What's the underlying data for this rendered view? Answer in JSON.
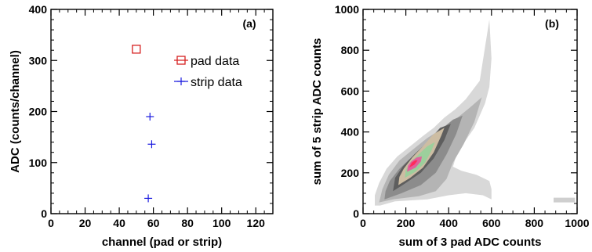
{
  "chart_data": [
    {
      "type": "scatter",
      "panel_label": "(a)",
      "xlabel": "channel (pad or strip)",
      "ylabel": "ADC (counts/channel)",
      "xlim": [
        0,
        130
      ],
      "ylim": [
        0,
        400
      ],
      "xticks": [
        "0",
        "20",
        "40",
        "60",
        "80",
        "100",
        "120"
      ],
      "yticks": [
        "0",
        "100",
        "200",
        "300",
        "400"
      ],
      "grid": false,
      "legend_position": "top-right",
      "series": [
        {
          "name": "pad data",
          "marker": "open-square",
          "color": "#d62020",
          "points": [
            {
              "x": 50,
              "y": 322
            }
          ]
        },
        {
          "name": "strip data",
          "marker": "plus",
          "color": "#1a1adf",
          "points": [
            {
              "x": 58,
              "y": 190
            },
            {
              "x": 59,
              "y": 136
            },
            {
              "x": 57,
              "y": 30
            }
          ]
        }
      ]
    },
    {
      "type": "heatmap",
      "panel_label": "(b)",
      "xlabel": "sum of 3 pad ADC counts",
      "ylabel": "sum of 5 strip ADC counts",
      "xlim": [
        0,
        1000
      ],
      "ylim": [
        0,
        1000
      ],
      "xticks": [
        "0",
        "200",
        "400",
        "600",
        "800",
        "1000"
      ],
      "yticks": [
        "0",
        "200",
        "400",
        "600",
        "800",
        "1000"
      ],
      "grid": false,
      "contour_levels": [
        {
          "color": "#d8d8d8",
          "polygon": [
            [
              55,
              40
            ],
            [
              80,
              40
            ],
            [
              150,
              60
            ],
            [
              300,
              70
            ],
            [
              400,
              90
            ],
            [
              480,
              100
            ],
            [
              560,
              90
            ],
            [
              600,
              70
            ],
            [
              600,
              120
            ],
            [
              590,
              160
            ],
            [
              530,
              190
            ],
            [
              460,
              210
            ],
            [
              420,
              230
            ],
            [
              440,
              300
            ],
            [
              520,
              420
            ],
            [
              570,
              540
            ],
            [
              590,
              620
            ],
            [
              600,
              760
            ],
            [
              590,
              950
            ],
            [
              545,
              650
            ],
            [
              480,
              560
            ],
            [
              430,
              510
            ],
            [
              380,
              470
            ],
            [
              330,
              420
            ],
            [
              280,
              380
            ],
            [
              220,
              330
            ],
            [
              160,
              280
            ],
            [
              110,
              220
            ],
            [
              75,
              150
            ],
            [
              55,
              90
            ]
          ]
        },
        {
          "color": "#b4b4b4",
          "polygon": [
            [
              75,
              55
            ],
            [
              140,
              70
            ],
            [
              260,
              85
            ],
            [
              340,
              110
            ],
            [
              390,
              170
            ],
            [
              420,
              250
            ],
            [
              470,
              340
            ],
            [
              520,
              450
            ],
            [
              555,
              570
            ],
            [
              500,
              520
            ],
            [
              430,
              460
            ],
            [
              360,
              410
            ],
            [
              300,
              370
            ],
            [
              240,
              320
            ],
            [
              170,
              260
            ],
            [
              120,
              190
            ],
            [
              90,
              120
            ]
          ]
        },
        {
          "color": "#8c8c8c",
          "polygon": [
            [
              100,
              70
            ],
            [
              180,
              100
            ],
            [
              270,
              140
            ],
            [
              340,
              200
            ],
            [
              390,
              290
            ],
            [
              435,
              390
            ],
            [
              465,
              480
            ],
            [
              420,
              460
            ],
            [
              350,
              400
            ],
            [
              290,
              340
            ],
            [
              230,
              280
            ],
            [
              170,
              220
            ],
            [
              125,
              160
            ],
            [
              105,
              110
            ]
          ]
        },
        {
          "color": "#5e5e5e",
          "polygon": [
            [
              140,
              110
            ],
            [
              200,
              150
            ],
            [
              270,
              200
            ],
            [
              330,
              270
            ],
            [
              380,
              360
            ],
            [
              410,
              440
            ],
            [
              360,
              420
            ],
            [
              300,
              350
            ],
            [
              240,
              290
            ],
            [
              185,
              230
            ],
            [
              150,
              175
            ]
          ]
        },
        {
          "color": "#cdbda3",
          "polygon": [
            [
              165,
              140
            ],
            [
              220,
              175
            ],
            [
              280,
              225
            ],
            [
              330,
              300
            ],
            [
              365,
              380
            ],
            [
              380,
              420
            ],
            [
              330,
              390
            ],
            [
              280,
              330
            ],
            [
              230,
              275
            ],
            [
              190,
              220
            ],
            [
              170,
              180
            ]
          ]
        },
        {
          "color": "#9ccf9c",
          "polygon": [
            [
              195,
              175
            ],
            [
              245,
              205
            ],
            [
              290,
              250
            ],
            [
              320,
              310
            ],
            [
              335,
              350
            ],
            [
              300,
              330
            ],
            [
              260,
              290
            ],
            [
              220,
              250
            ],
            [
              200,
              215
            ]
          ]
        },
        {
          "color": "#e0609c",
          "polygon": [
            [
              205,
              205
            ],
            [
              245,
              225
            ],
            [
              270,
              255
            ],
            [
              275,
              280
            ],
            [
              250,
              275
            ],
            [
              225,
              255
            ],
            [
              210,
              235
            ]
          ]
        },
        {
          "color": "#ff2a5a",
          "polygon": [
            [
              215,
              225
            ],
            [
              240,
              240
            ],
            [
              255,
              260
            ],
            [
              245,
              262
            ],
            [
              228,
              250
            ]
          ]
        },
        {
          "color": "#cfcfcf",
          "polygon": [
            [
              890,
              55
            ],
            [
              990,
              55
            ],
            [
              990,
              78
            ],
            [
              890,
              78
            ]
          ]
        }
      ]
    }
  ]
}
